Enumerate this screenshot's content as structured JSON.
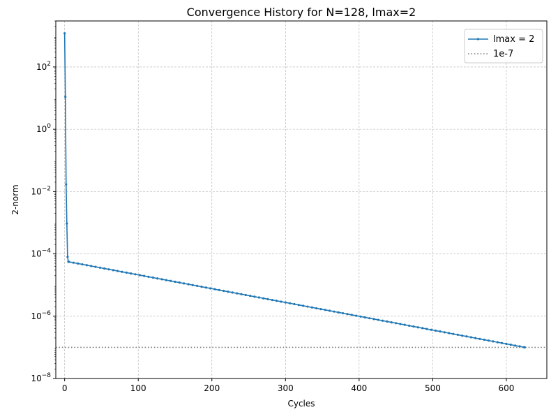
{
  "chart_data": {
    "type": "line",
    "title": "Convergence History for N=128, lmax=2",
    "xlabel": "Cycles",
    "ylabel": "2-norm",
    "yscale": "log",
    "xlim": [
      -12,
      655
    ],
    "ylim": [
      1e-08,
      3000
    ],
    "grid": true,
    "legend_position": "top-right",
    "x_ticks": [
      0,
      100,
      200,
      300,
      400,
      500,
      600
    ],
    "y_ticks": [
      {
        "value": 1e-08,
        "base": "10",
        "exp": "−8"
      },
      {
        "value": 1e-06,
        "base": "10",
        "exp": "−6"
      },
      {
        "value": 0.0001,
        "base": "10",
        "exp": "−4"
      },
      {
        "value": 0.01,
        "base": "10",
        "exp": "−2"
      },
      {
        "value": 1,
        "base": "10",
        "exp": "0"
      },
      {
        "value": 100,
        "base": "10",
        "exp": "2"
      }
    ],
    "series": [
      {
        "name": "lmax = 2",
        "color": "#1f77b4",
        "style": "solid-with-markers",
        "head_points": [
          [
            0,
            1200
          ],
          [
            1,
            11
          ],
          [
            2,
            0.017
          ],
          [
            3,
            0.00095
          ],
          [
            4,
            8e-05
          ],
          [
            5,
            5.6e-05
          ]
        ],
        "tail_start": [
          5,
          5.6e-05
        ],
        "tail_end": [
          625,
          1e-07
        ]
      },
      {
        "name": "1e-7",
        "color": "#7f7f7f",
        "style": "dotted",
        "y": 1e-07
      }
    ]
  }
}
